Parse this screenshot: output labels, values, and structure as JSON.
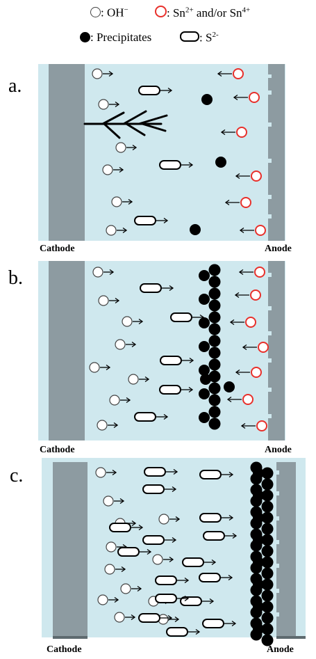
{
  "legend": {
    "oh_label": ": OH",
    "oh_sup": "−",
    "sn_label": ": Sn",
    "sn_sup1": "2+",
    "sn_mid": " and/or  Sn",
    "sn_sup2": "4+",
    "precip_label": ": Precipitates",
    "s_label": ": S",
    "s_sup": "2-"
  },
  "panels": [
    {
      "letter": "a.",
      "cathode_label": "Cathode",
      "anode_label": "Anode"
    },
    {
      "letter": "b.",
      "cathode_label": "Cathode",
      "anode_label": "Anode"
    },
    {
      "letter": "c.",
      "cathode_label": "Cathode",
      "anode_label": "Anode"
    }
  ],
  "colors": {
    "electrolyte": "#cfe8ee",
    "electrode": "#8d9ba1",
    "electrode_dark": "#5e6a6f",
    "sn_ion": "#e8302b",
    "precipitate": "#000000"
  }
}
